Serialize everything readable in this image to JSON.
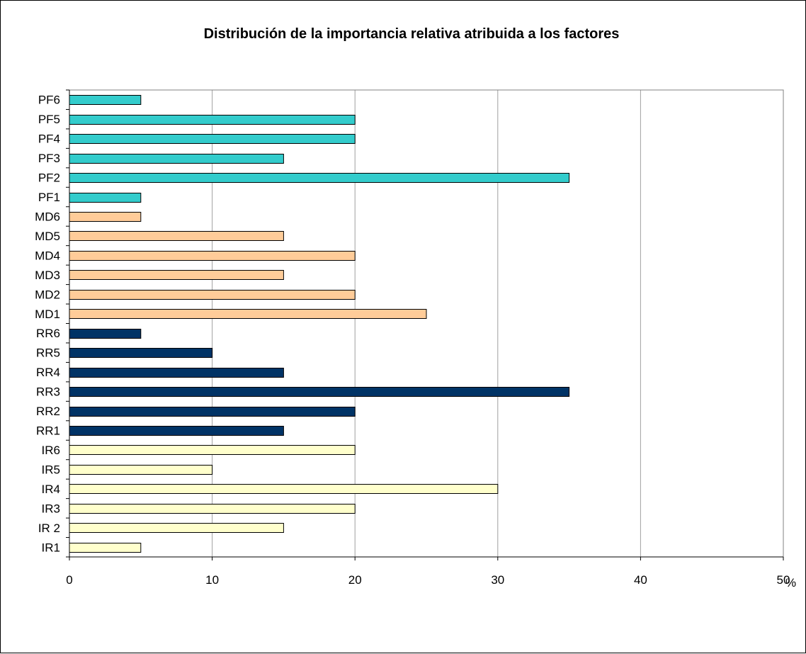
{
  "chart_data": {
    "type": "bar",
    "orientation": "horizontal",
    "title": "Distribución de la importancia relativa atribuida a los factores",
    "xlabel": "",
    "ylabel": "",
    "x_unit": "%",
    "xlim": [
      0,
      50
    ],
    "x_ticks": [
      "0",
      "10",
      "20",
      "30",
      "40",
      "50"
    ],
    "grid": "vertical",
    "legend": "none",
    "categories": [
      "IR1",
      "IR 2",
      "IR3",
      "IR4",
      "IR5",
      "IR6",
      "RR1",
      "RR2",
      "RR3",
      "RR4",
      "RR5",
      "RR6",
      "MD1",
      "MD2",
      "MD3",
      "MD4",
      "MD5",
      "MD6",
      "PF1",
      "PF2",
      "PF3",
      "PF4",
      "PF5",
      "PF6"
    ],
    "values": [
      5,
      15,
      20,
      30,
      10,
      20,
      15,
      20,
      35,
      15,
      10,
      5,
      25,
      20,
      15,
      20,
      15,
      5,
      5,
      35,
      15,
      20,
      20,
      5
    ],
    "groups": [
      {
        "prefix": "IR",
        "color": "#FFFFCC"
      },
      {
        "prefix": "RR",
        "color": "#003366"
      },
      {
        "prefix": "MD",
        "color": "#FFCC99"
      },
      {
        "prefix": "PF",
        "color": "#33CCCC"
      }
    ]
  }
}
